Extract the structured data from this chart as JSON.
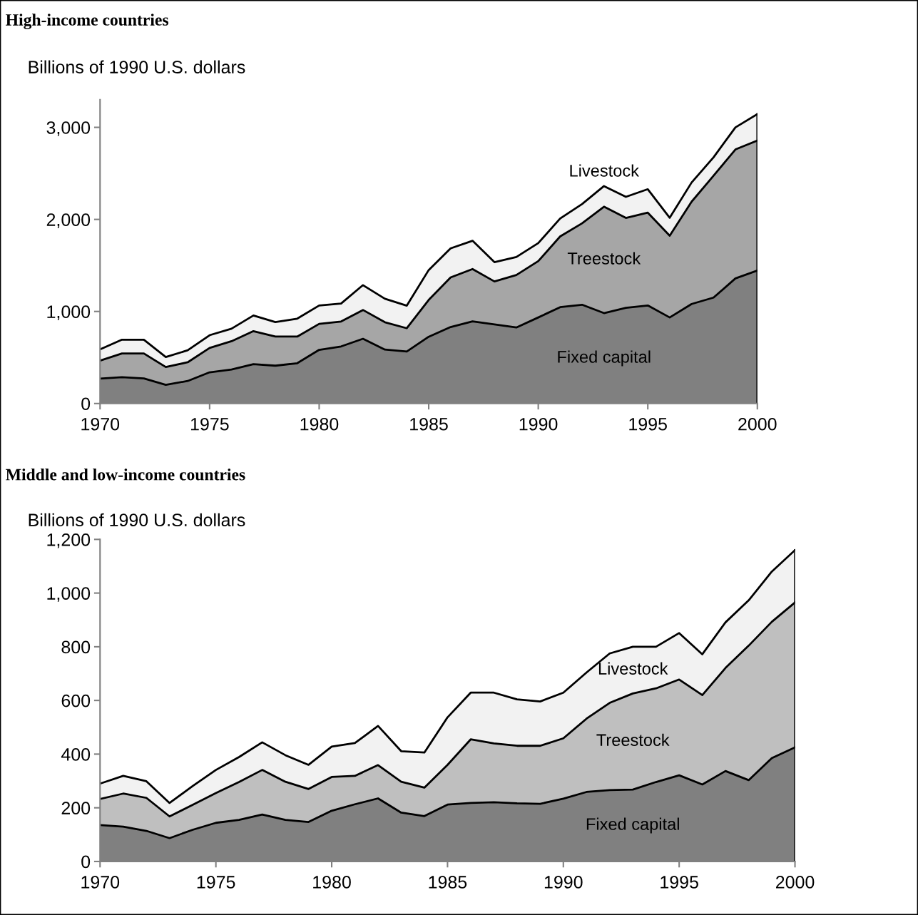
{
  "chart_data": [
    {
      "type": "area",
      "stacked": true,
      "title": "High-income countries",
      "ylabel": "Billions of 1990 U.S. dollars",
      "x": [
        1970,
        1971,
        1972,
        1973,
        1974,
        1975,
        1976,
        1977,
        1978,
        1979,
        1980,
        1981,
        1982,
        1983,
        1984,
        1985,
        1986,
        1987,
        1988,
        1989,
        1990,
        1991,
        1992,
        1993,
        1994,
        1995,
        1996,
        1997,
        1998,
        1999,
        2000
      ],
      "xlim": [
        1970,
        2000
      ],
      "xticks": [
        1970,
        1975,
        1980,
        1985,
        1990,
        1995,
        2000
      ],
      "ylim": [
        0,
        3300
      ],
      "yticks": [
        0,
        {
          "value": 1000,
          "label": "1,000"
        },
        {
          "value": 2000,
          "label": "2,000"
        },
        {
          "value": 3000,
          "label": "3,000"
        }
      ],
      "grid": false,
      "legend": false,
      "series": [
        {
          "name": "Fixed capital",
          "color": "#808080",
          "values": [
            271,
            286,
            273,
            203,
            245,
            339,
            370,
            427,
            411,
            438,
            583,
            620,
            703,
            586,
            565,
            725,
            831,
            893,
            859,
            826,
            935,
            1047,
            1073,
            982,
            1039,
            1065,
            935,
            1081,
            1151,
            1359,
            1445
          ]
        },
        {
          "name": "Treestock",
          "color": "#a6a6a6",
          "values": [
            195,
            258,
            271,
            193,
            203,
            265,
            307,
            359,
            316,
            289,
            282,
            271,
            313,
            297,
            253,
            400,
            539,
            568,
            467,
            570,
            612,
            768,
            885,
            1156,
            977,
            1008,
            888,
            1112,
            1323,
            1401,
            1412
          ]
        },
        {
          "name": "Livestock",
          "color": "#f2f2f2",
          "values": [
            123,
            149,
            149,
            109,
            130,
            138,
            136,
            170,
            158,
            195,
            200,
            195,
            270,
            255,
            245,
            325,
            315,
            307,
            210,
            195,
            195,
            195,
            209,
            224,
            229,
            255,
            195,
            208,
            200,
            240,
            286
          ]
        }
      ]
    },
    {
      "type": "area",
      "stacked": true,
      "title": "Middle and low-income countries",
      "ylabel": "Billions of 1990 U.S. dollars",
      "x": [
        1970,
        1971,
        1972,
        1973,
        1974,
        1975,
        1976,
        1977,
        1978,
        1979,
        1980,
        1981,
        1982,
        1983,
        1984,
        1985,
        1986,
        1987,
        1988,
        1989,
        1990,
        1991,
        1992,
        1993,
        1994,
        1995,
        1996,
        1997,
        1998,
        1999,
        2000
      ],
      "xlim": [
        1970,
        2000
      ],
      "xticks": [
        1970,
        1975,
        1980,
        1985,
        1990,
        1995,
        2000
      ],
      "ylim": [
        0,
        1200
      ],
      "yticks": [
        0,
        200,
        400,
        600,
        800,
        {
          "value": 1000,
          "label": "1,000"
        },
        {
          "value": 1200,
          "label": "1,200"
        }
      ],
      "grid": false,
      "legend": false,
      "series": [
        {
          "name": "Fixed capital",
          "color": "#808080",
          "values": [
            136,
            130,
            114,
            87,
            118,
            144,
            155,
            175,
            155,
            147,
            189,
            213,
            235,
            182,
            169,
            212,
            218,
            221,
            217,
            215,
            234,
            259,
            266,
            268,
            296,
            321,
            287,
            337,
            303,
            385,
            425
          ]
        },
        {
          "name": "Treestock",
          "color": "#bfbfbf",
          "values": [
            97,
            123,
            123,
            81,
            93,
            111,
            141,
            166,
            142,
            123,
            126,
            106,
            124,
            115,
            106,
            148,
            237,
            219,
            214,
            216,
            225,
            273,
            325,
            358,
            349,
            357,
            333,
            384,
            501,
            508,
            540
          ]
        },
        {
          "name": "Livestock",
          "color": "#f2f2f2",
          "values": [
            57,
            66,
            62,
            50,
            70,
            86,
            93,
            103,
            99,
            90,
            113,
            122,
            146,
            114,
            131,
            177,
            174,
            189,
            173,
            165,
            170,
            172,
            184,
            174,
            155,
            173,
            152,
            170,
            169,
            187,
            195
          ]
        }
      ]
    }
  ]
}
